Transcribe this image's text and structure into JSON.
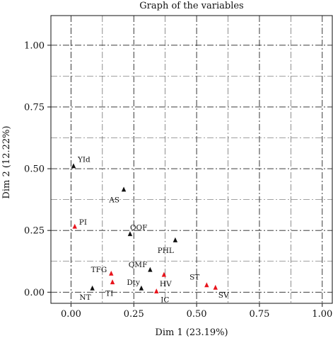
{
  "chart_data": {
    "type": "scatter",
    "title": "Graph of the variables",
    "xlabel": "Dim 1 (23.19%)",
    "ylabel": "Dim 2 (12.22%)",
    "xlim": [
      -0.08,
      1.04
    ],
    "ylim": [
      -0.045,
      1.12
    ],
    "x_ticks": [
      {
        "value": 0.0,
        "label": "0.00"
      },
      {
        "value": 0.25,
        "label": "0.25"
      },
      {
        "value": 0.5,
        "label": "0.50"
      },
      {
        "value": 0.75,
        "label": "0.75"
      },
      {
        "value": 1.0,
        "label": "1.00"
      }
    ],
    "y_ticks": [
      {
        "value": 0.0,
        "label": "0.00"
      },
      {
        "value": 0.25,
        "label": "0.25"
      },
      {
        "value": 0.5,
        "label": "0.50"
      },
      {
        "value": 0.75,
        "label": "0.75"
      },
      {
        "value": 1.0,
        "label": "1.00"
      }
    ],
    "grid": true,
    "grid_style": "dash-dot",
    "colors": {
      "black": "#111111",
      "red": "#e8141c"
    },
    "points": [
      {
        "label": "YId",
        "x": 0.01,
        "y": 0.51,
        "color": "black"
      },
      {
        "label": "AS",
        "x": 0.21,
        "y": 0.415,
        "color": "black"
      },
      {
        "label": "PI",
        "x": 0.015,
        "y": 0.265,
        "color": "red"
      },
      {
        "label": "QOF",
        "x": 0.235,
        "y": 0.235,
        "color": "black"
      },
      {
        "label": "PHL",
        "x": 0.415,
        "y": 0.21,
        "color": "black"
      },
      {
        "label": "QMF",
        "x": 0.315,
        "y": 0.09,
        "color": "black"
      },
      {
        "label": "TFG",
        "x": 0.16,
        "y": 0.075,
        "color": "red"
      },
      {
        "label": "HV",
        "x": 0.37,
        "y": 0.07,
        "color": "red"
      },
      {
        "label": "TI",
        "x": 0.165,
        "y": 0.04,
        "color": "red"
      },
      {
        "label": "Dty",
        "x": 0.28,
        "y": 0.015,
        "color": "black"
      },
      {
        "label": "NT",
        "x": 0.085,
        "y": 0.015,
        "color": "black"
      },
      {
        "label": "IC",
        "x": 0.34,
        "y": 0.003,
        "color": "red"
      },
      {
        "label": "ST",
        "x": 0.54,
        "y": 0.028,
        "color": "red"
      },
      {
        "label": "SV",
        "x": 0.575,
        "y": 0.018,
        "color": "red"
      }
    ]
  }
}
